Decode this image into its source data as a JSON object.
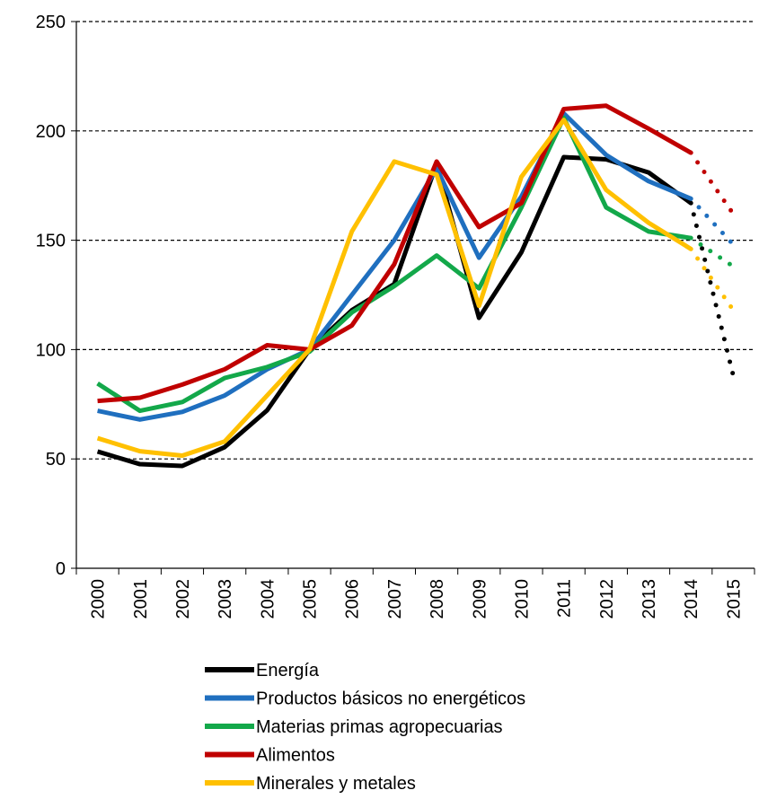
{
  "chart_data": {
    "type": "line",
    "categories": [
      "2000",
      "2001",
      "2002",
      "2003",
      "2004",
      "2005",
      "2006",
      "2007",
      "2008",
      "2009",
      "2010",
      "2011",
      "2012",
      "2013",
      "2014",
      "2015"
    ],
    "series": [
      {
        "name": "Energía",
        "color": "#000000",
        "values": [
          53.4,
          47.6,
          46.8,
          55.4,
          72.2,
          100,
          118,
          130,
          185,
          114.5,
          144.5,
          188,
          187,
          181,
          167,
          88
        ]
      },
      {
        "name": "Productos básicos no energéticos",
        "color": "#1f6fbf",
        "values": [
          72,
          68,
          71.5,
          79,
          91,
          100,
          125,
          150,
          183,
          142,
          170,
          208,
          189,
          177,
          169,
          148
        ]
      },
      {
        "name": "Materias primas agropecuarias",
        "color": "#13a84a",
        "values": [
          84.5,
          72,
          76,
          87,
          92,
          99,
          117,
          129,
          143,
          128,
          165,
          206,
          165,
          154,
          151,
          138
        ]
      },
      {
        "name": "Alimentos",
        "color": "#c00000",
        "values": [
          76.5,
          78,
          84,
          91,
          102,
          100,
          111,
          139,
          186,
          156,
          167,
          210,
          211.5,
          201,
          190,
          162
        ]
      },
      {
        "name": "Minerales y metales",
        "color": "#ffc000",
        "values": [
          59.5,
          53.5,
          51.5,
          58,
          79,
          100,
          154,
          186,
          180,
          120,
          179,
          205,
          173,
          158,
          146,
          118
        ]
      }
    ],
    "ylim": [
      0,
      250
    ],
    "yticks": [
      0,
      50,
      100,
      150,
      200,
      250
    ],
    "grid": true
  }
}
